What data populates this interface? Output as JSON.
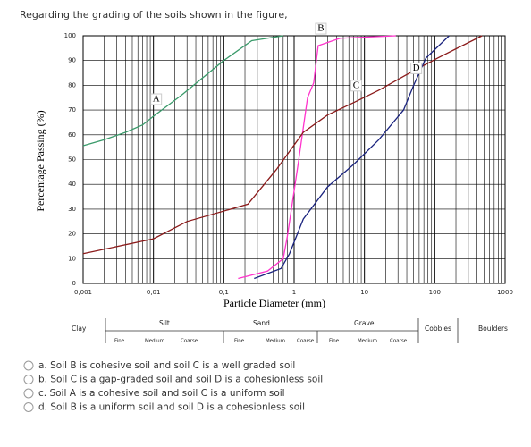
{
  "question": "Regarding the grading of the soils shown in the figure,",
  "chart_data": {
    "type": "line",
    "xlabel": "Particle Diameter (mm)",
    "ylabel": "Percentage Passing (%)",
    "xscale": "log",
    "grid": true,
    "xlim": [
      0.001,
      1000
    ],
    "ylim": [
      0,
      100
    ],
    "xticks": [
      {
        "value": 0.001,
        "label": "0,001"
      },
      {
        "value": 0.01,
        "label": "0,01"
      },
      {
        "value": 0.1,
        "label": "0,1"
      },
      1,
      10,
      100,
      1000
    ],
    "yticks": [
      0,
      10,
      20,
      30,
      40,
      50,
      60,
      70,
      80,
      90,
      100
    ],
    "series": [
      {
        "name": "A",
        "color": "#3a9a6a",
        "x": [
          0.001,
          0.002,
          0.004,
          0.007,
          0.01,
          0.025,
          0.1,
          0.25,
          0.7
        ],
        "values": [
          55.6,
          58,
          61,
          64,
          67.5,
          76,
          90,
          98,
          100
        ]
      },
      {
        "name": "B",
        "color": "#ff33cc",
        "x": [
          0.16,
          0.42,
          0.7,
          0.8,
          1.15,
          1.55,
          1.9,
          2.2,
          4.5,
          28
        ],
        "values": [
          2,
          5,
          10,
          19,
          49,
          75,
          81,
          96,
          99,
          100
        ]
      },
      {
        "name": "C",
        "color": "#8b1a1a",
        "x": [
          0.001,
          0.01,
          0.03,
          0.22,
          0.56,
          1.35,
          3,
          7,
          16,
          38,
          110,
          470
        ],
        "values": [
          12,
          18,
          25,
          32,
          46,
          61,
          68,
          73,
          78,
          84,
          91,
          100
        ]
      },
      {
        "name": "D",
        "color": "#1a237e",
        "x": [
          0.27,
          0.65,
          0.86,
          1.35,
          3,
          7,
          16,
          36,
          50,
          75,
          160
        ],
        "values": [
          2,
          6,
          12,
          26,
          39,
          48,
          58,
          70,
          80,
          91,
          100
        ]
      }
    ]
  },
  "classification": {
    "groups": [
      "Clay",
      "Silt",
      "Sand",
      "Gravel",
      "Cobbles",
      "Boulders"
    ],
    "subdivisions": [
      "Fine",
      "Medium",
      "Coarse",
      "Fine",
      "Medium",
      "Coarse",
      "Fine",
      "Medium",
      "Coarse"
    ]
  },
  "options": [
    "a. Soil B is cohesive soil and soil C is a well graded soil",
    "b. Soil C is a gap-graded soil and soil D is a cohesionless soil",
    "c. Soil A is a cohesive soil and soil C is a uniform soil",
    "d. Soil B is a uniform soil and soil D is a cohesionless soil"
  ]
}
